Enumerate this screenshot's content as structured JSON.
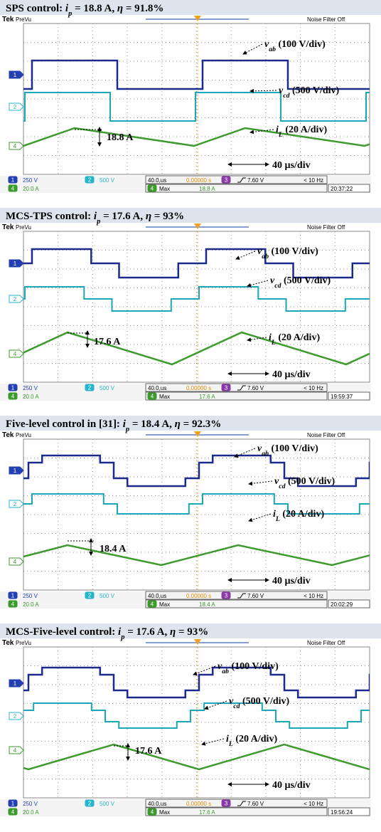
{
  "channel_numbers": [
    "1",
    "2",
    "3",
    "4"
  ],
  "panels": [
    {
      "title": [
        {
          "text": "SPS control: "
        },
        {
          "text": "i",
          "italic": true
        },
        {
          "text": "p",
          "italic": true,
          "sub": true
        },
        {
          "text": " = 18.8 A, "
        },
        {
          "text": "η",
          "italic": true
        },
        {
          "text": " = 91.8%"
        }
      ],
      "scope": {
        "brand": "Tek",
        "mode": "PreVu",
        "filter": "Noise Filter Off"
      },
      "labels": {
        "vab": [
          {
            "text": "v",
            "italic": true
          },
          {
            "text": "ab",
            "italic": true,
            "sub": true
          },
          {
            "text": " (100 V/div)"
          }
        ],
        "vcd": [
          {
            "text": "v",
            "italic": true
          },
          {
            "text": "cd",
            "italic": true,
            "sub": true
          },
          {
            "text": " (500 V/div)"
          }
        ],
        "iL": [
          {
            "text": "i",
            "italic": true
          },
          {
            "text": "L",
            "italic": true,
            "sub": true
          },
          {
            "text": " (20 A/div)"
          }
        ],
        "peak": "18.8 A",
        "timebase": "40 µs/div"
      },
      "status": {
        "ch1": "250 V",
        "ch2": "500 V",
        "ch4": "20.0 A",
        "horizontal": "40.0,us",
        "position": "0.00000 s",
        "trigger": "7.60 V",
        "frequency": "< 10 Hz",
        "measure": "Max",
        "measure_value": "18.8 A",
        "time": "20:37:22"
      }
    },
    {
      "title": [
        {
          "text": "MCS-TPS control: "
        },
        {
          "text": "i",
          "italic": true
        },
        {
          "text": "p",
          "italic": true,
          "sub": true
        },
        {
          "text": " = 17.6 A, "
        },
        {
          "text": "η",
          "italic": true
        },
        {
          "text": " = 93%"
        }
      ],
      "scope": {
        "brand": "Tek",
        "mode": "PreVu",
        "filter": "Noise Filter Off"
      },
      "labels": {
        "vab": [
          {
            "text": "v",
            "italic": true
          },
          {
            "text": "ab",
            "italic": true,
            "sub": true
          },
          {
            "text": " (100 V/div)"
          }
        ],
        "vcd": [
          {
            "text": "v",
            "italic": true
          },
          {
            "text": "cd",
            "italic": true,
            "sub": true
          },
          {
            "text": " (500 V/div)"
          }
        ],
        "iL": [
          {
            "text": "i",
            "italic": true
          },
          {
            "text": "L",
            "italic": true,
            "sub": true
          },
          {
            "text": " (20 A/div)"
          }
        ],
        "peak": "17.6 A",
        "timebase": "40 µs/div"
      },
      "status": {
        "ch1": "250 V",
        "ch2": "500 V",
        "ch4": "20.0 A",
        "horizontal": "40.0,us",
        "position": "0.00000 s",
        "trigger": "7.60 V",
        "frequency": "< 10 Hz",
        "measure": "Max",
        "measure_value": "17.6 A",
        "time": "19:59:37"
      }
    },
    {
      "title": [
        {
          "text": "Five-level control in [31]: "
        },
        {
          "text": "i",
          "italic": true
        },
        {
          "text": "p",
          "italic": true,
          "sub": true
        },
        {
          "text": " = 18.4 A, "
        },
        {
          "text": "η",
          "italic": true
        },
        {
          "text": " = 92.3%"
        }
      ],
      "scope": {
        "brand": "Tek",
        "mode": "PreVu",
        "filter": "Noise Filter Off"
      },
      "labels": {
        "vab": [
          {
            "text": "v",
            "italic": true
          },
          {
            "text": "ab",
            "italic": true,
            "sub": true
          },
          {
            "text": " (100 V/div)"
          }
        ],
        "vcd": [
          {
            "text": "v",
            "italic": true
          },
          {
            "text": "cd",
            "italic": true,
            "sub": true
          },
          {
            "text": " (500 V/div)"
          }
        ],
        "iL": [
          {
            "text": "i",
            "italic": true
          },
          {
            "text": "L",
            "italic": true,
            "sub": true
          },
          {
            "text": " (20 A/div)"
          }
        ],
        "peak": "18.4 A",
        "timebase": "40 µs/div"
      },
      "status": {
        "ch1": "250 V",
        "ch2": "500 V",
        "ch4": "20.0 A",
        "horizontal": "40.0,us",
        "position": "0.00000 s",
        "trigger": "7.60 V",
        "frequency": "< 10 Hz",
        "measure": "Max",
        "measure_value": "18.4 A",
        "time": "20:02:29"
      }
    },
    {
      "title": [
        {
          "text": "MCS-Five-level control: "
        },
        {
          "text": "i",
          "italic": true
        },
        {
          "text": "p",
          "italic": true,
          "sub": true
        },
        {
          "text": " = 17.6 A, "
        },
        {
          "text": "η",
          "italic": true
        },
        {
          "text": " = 93%"
        }
      ],
      "scope": {
        "brand": "Tek",
        "mode": "PreVu",
        "filter": "Noise Filter Off"
      },
      "labels": {
        "vab": [
          {
            "text": "v",
            "italic": true
          },
          {
            "text": "ab",
            "italic": true,
            "sub": true
          },
          {
            "text": " (100 V/div)"
          }
        ],
        "vcd": [
          {
            "text": "v",
            "italic": true
          },
          {
            "text": "cd",
            "italic": true,
            "sub": true
          },
          {
            "text": " (500 V/div)"
          }
        ],
        "iL": [
          {
            "text": "i",
            "italic": true
          },
          {
            "text": "L",
            "italic": true,
            "sub": true
          },
          {
            "text": " (20 A/div)"
          }
        ],
        "peak": "17.6 A",
        "timebase": "40 µs/div"
      },
      "status": {
        "ch1": "250 V",
        "ch2": "500 V",
        "ch4": "20.0 A",
        "horizontal": "40.0,us",
        "position": "0.00000 s",
        "trigger": "7.60 V",
        "frequency": "< 10 Hz",
        "measure": "Max",
        "measure_value": "17.6 A",
        "time": "19:56:24"
      }
    }
  ]
}
